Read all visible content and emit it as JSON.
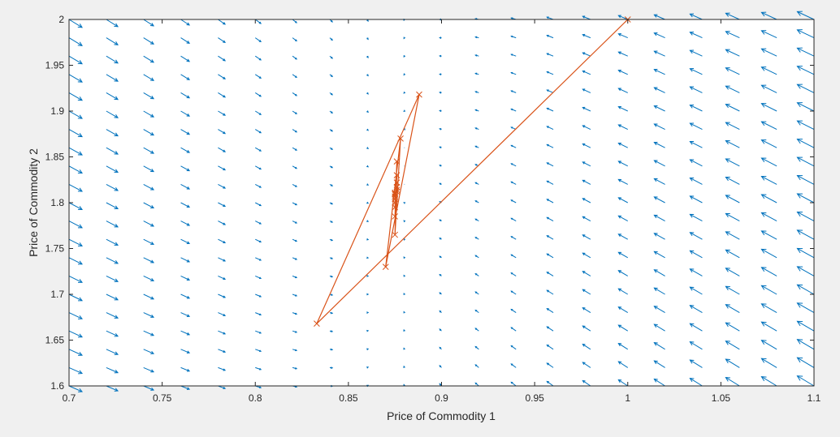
{
  "chart_data": {
    "type": "quiver",
    "title": "",
    "xlabel": "Price of Commodity 1",
    "ylabel": "Price of Commodity 2",
    "xlim": [
      0.7,
      1.1
    ],
    "ylim": [
      1.6,
      2.0
    ],
    "xticks": [
      "0.7",
      "0.75",
      "0.8",
      "0.85",
      "0.9",
      "0.95",
      "1",
      "1.05",
      "1.1"
    ],
    "yticks": [
      "1.6",
      "1.65",
      "1.7",
      "1.75",
      "1.8",
      "1.85",
      "1.9",
      "1.95",
      "2"
    ],
    "grid": false,
    "colors": {
      "field": "#0072BD",
      "trajectory": "#D95319",
      "axes": "#262626",
      "plot_bg": "#ffffff",
      "figure_bg": "#f0f0f0"
    },
    "vector_field": {
      "x_range": [
        0.7,
        1.1
      ],
      "x_step": 0.02,
      "y_range": [
        1.6,
        2.0
      ],
      "y_step": 0.02,
      "equilibrium": [
        0.875,
        1.81
      ],
      "description_model": "dx proportional to (x_eq - x), dy proportional to (x - x_eq) plus small (y_eq - y) component"
    },
    "trajectory": {
      "marker": "x",
      "points": [
        [
          1.0,
          2.0
        ],
        [
          0.833,
          1.668
        ],
        [
          0.888,
          1.918
        ],
        [
          0.87,
          1.73
        ],
        [
          0.878,
          1.87
        ],
        [
          0.875,
          1.765
        ],
        [
          0.876,
          1.845
        ],
        [
          0.875,
          1.785
        ],
        [
          0.876,
          1.83
        ],
        [
          0.875,
          1.795
        ],
        [
          0.876,
          1.822
        ],
        [
          0.875,
          1.8
        ],
        [
          0.876,
          1.817
        ],
        [
          0.875,
          1.804
        ],
        [
          0.876,
          1.814
        ],
        [
          0.875,
          1.807
        ],
        [
          0.876,
          1.812
        ],
        [
          0.875,
          1.809
        ],
        [
          0.875,
          1.811
        ],
        [
          0.875,
          1.81
        ]
      ]
    }
  }
}
